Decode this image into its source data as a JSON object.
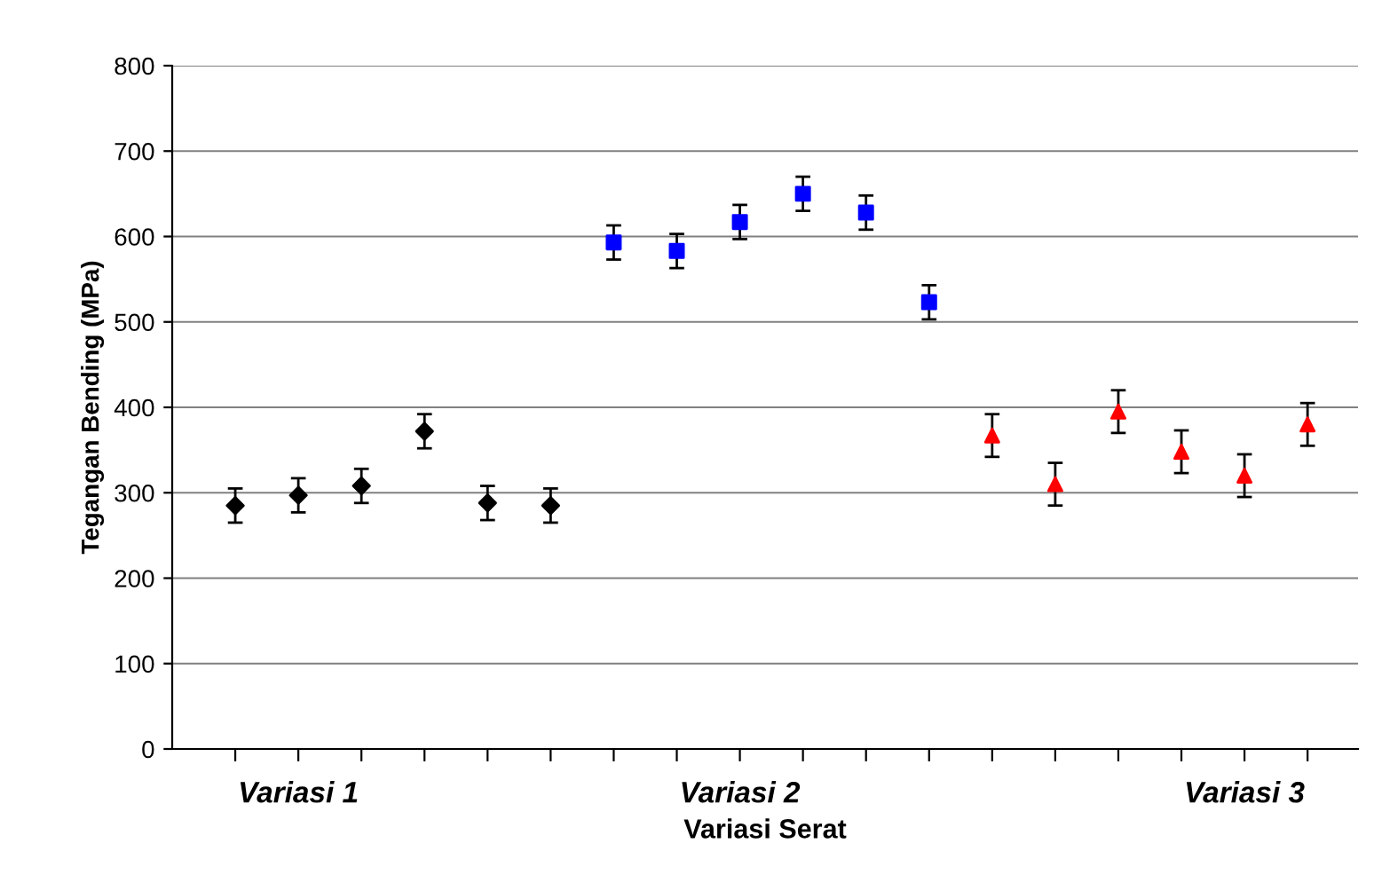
{
  "chart_data": {
    "type": "scatter",
    "xlabel": "Variasi Serat",
    "ylabel": "Tegangan Bending (MPa)",
    "categories": [
      null,
      "Variasi 1",
      null,
      null,
      null,
      null,
      null,
      null,
      "Variasi 2",
      null,
      null,
      null,
      null,
      null,
      null,
      null,
      "Variasi 3",
      null
    ],
    "series": [
      {
        "color": "#000000",
        "marker": "diamond",
        "values": [
          285,
          297,
          308,
          372,
          288,
          285,
          null,
          null,
          null,
          null,
          null,
          null,
          null,
          null,
          null,
          null,
          null,
          null
        ],
        "errors": [
          20,
          20,
          20,
          20,
          20,
          20,
          null,
          null,
          null,
          null,
          null,
          null,
          null,
          null,
          null,
          null,
          null,
          null
        ]
      },
      {
        "color": "#0000ff",
        "marker": "square",
        "values": [
          null,
          null,
          null,
          null,
          null,
          null,
          593,
          583,
          617,
          650,
          628,
          523,
          null,
          null,
          null,
          null,
          null,
          null
        ],
        "errors": [
          null,
          null,
          null,
          null,
          null,
          null,
          20,
          20,
          20,
          20,
          20,
          20,
          null,
          null,
          null,
          null,
          null,
          null
        ]
      },
      {
        "color": "#ff0000",
        "marker": "triangle",
        "values": [
          null,
          null,
          null,
          null,
          null,
          null,
          null,
          null,
          null,
          null,
          null,
          null,
          367,
          310,
          395,
          348,
          320,
          380
        ],
        "errors": [
          null,
          null,
          null,
          null,
          null,
          null,
          null,
          null,
          null,
          null,
          null,
          null,
          25,
          25,
          25,
          25,
          25,
          25
        ]
      }
    ],
    "ylim": [
      0,
      800
    ],
    "yticks": [
      0,
      100,
      200,
      300,
      400,
      500,
      600,
      700,
      800
    ],
    "grid": "y",
    "legend": false
  }
}
